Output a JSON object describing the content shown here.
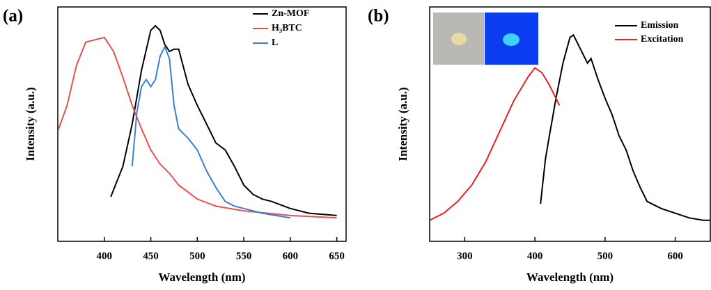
{
  "chart_data": [
    {
      "type": "line",
      "panel_label": "(a)",
      "x_label": "Wavelength (nm)",
      "y_label": "Intensity (a.u.)",
      "xlim": [
        350,
        660
      ],
      "xticks": [
        400,
        450,
        500,
        550,
        600,
        650
      ],
      "ylim": [
        0,
        1
      ],
      "series": [
        {
          "name": "Zn-MOF",
          "color": "#000000",
          "x": [
            407,
            420,
            430,
            440,
            450,
            455,
            460,
            465,
            470,
            475,
            480,
            490,
            500,
            510,
            520,
            530,
            540,
            550,
            560,
            570,
            580,
            600,
            620,
            650
          ],
          "values": [
            0.19,
            0.32,
            0.5,
            0.73,
            0.9,
            0.92,
            0.9,
            0.84,
            0.81,
            0.82,
            0.82,
            0.67,
            0.58,
            0.5,
            0.42,
            0.39,
            0.32,
            0.24,
            0.2,
            0.18,
            0.17,
            0.14,
            0.12,
            0.11
          ]
        },
        {
          "name": "H₃BTC",
          "color": "#e8504f",
          "x": [
            350,
            360,
            370,
            380,
            390,
            400,
            410,
            420,
            430,
            440,
            450,
            460,
            470,
            480,
            490,
            500,
            520,
            550,
            600,
            650
          ],
          "values": [
            0.47,
            0.58,
            0.75,
            0.85,
            0.86,
            0.87,
            0.81,
            0.7,
            0.58,
            0.48,
            0.39,
            0.33,
            0.29,
            0.24,
            0.21,
            0.18,
            0.15,
            0.13,
            0.11,
            0.1
          ]
        },
        {
          "name": "L",
          "color": "#3a7fd0",
          "x": [
            430,
            435,
            440,
            445,
            450,
            455,
            460,
            465,
            470,
            475,
            480,
            490,
            500,
            510,
            520,
            530,
            540,
            550,
            570,
            600
          ],
          "values": [
            0.32,
            0.55,
            0.66,
            0.69,
            0.66,
            0.69,
            0.79,
            0.83,
            0.78,
            0.58,
            0.48,
            0.44,
            0.39,
            0.3,
            0.23,
            0.17,
            0.15,
            0.14,
            0.12,
            0.1
          ]
        }
      ]
    },
    {
      "type": "line",
      "panel_label": "(b)",
      "x_label": "Wavelength (nm)",
      "y_label": "Intensity (a.u.)",
      "xlim": [
        250,
        650
      ],
      "xticks": [
        300,
        400,
        500,
        600
      ],
      "ylim": [
        0,
        1
      ],
      "series": [
        {
          "name": "Emission",
          "color": "#000000",
          "x": [
            408,
            415,
            420,
            430,
            440,
            450,
            455,
            460,
            465,
            470,
            475,
            480,
            490,
            500,
            510,
            520,
            530,
            540,
            550,
            560,
            580,
            600,
            620,
            640,
            650
          ],
          "values": [
            0.16,
            0.35,
            0.44,
            0.61,
            0.76,
            0.87,
            0.88,
            0.85,
            0.82,
            0.79,
            0.76,
            0.78,
            0.69,
            0.61,
            0.54,
            0.45,
            0.39,
            0.3,
            0.23,
            0.17,
            0.14,
            0.12,
            0.1,
            0.09,
            0.09
          ]
        },
        {
          "name": "Excitation",
          "color": "#e8201f",
          "x": [
            250,
            270,
            290,
            310,
            330,
            350,
            370,
            390,
            400,
            410,
            420,
            435
          ],
          "values": [
            0.09,
            0.12,
            0.17,
            0.24,
            0.34,
            0.47,
            0.6,
            0.7,
            0.74,
            0.72,
            0.67,
            0.58
          ]
        }
      ]
    }
  ]
}
